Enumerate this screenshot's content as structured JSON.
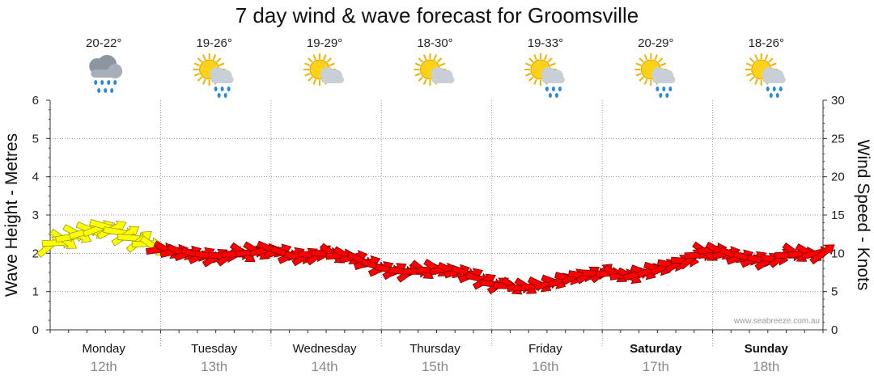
{
  "chart_data": {
    "type": "line",
    "title": "7 day wind & wave forecast for Groomsville",
    "ylabel": "Wave Height - Metres",
    "y2label": "Wind Speed - Knots",
    "ylim": [
      0,
      6
    ],
    "y2lim": [
      0,
      30
    ],
    "yticks": [
      "0",
      "1",
      "2",
      "3",
      "4",
      "5",
      "6"
    ],
    "y2ticks": [
      "0",
      "5",
      "10",
      "15",
      "20",
      "25",
      "30"
    ],
    "watermark": "www.seabreeze.com.au",
    "days": [
      {
        "day": "Monday",
        "date": "12th",
        "temp": "20-22°",
        "icon": "rain-cloud-icon",
        "bold": false
      },
      {
        "day": "Tuesday",
        "date": "13th",
        "temp": "19-26°",
        "icon": "sun-cloud-rain-icon",
        "bold": false
      },
      {
        "day": "Wednesday",
        "date": "14th",
        "temp": "19-29°",
        "icon": "sun-cloud-icon",
        "bold": false
      },
      {
        "day": "Thursday",
        "date": "15th",
        "temp": "18-30°",
        "icon": "sun-cloud-icon",
        "bold": false
      },
      {
        "day": "Friday",
        "date": "16th",
        "temp": "19-33°",
        "icon": "sun-cloud-rain-icon",
        "bold": false
      },
      {
        "day": "Saturday",
        "date": "17th",
        "temp": "20-29°",
        "icon": "sun-cloud-rain-icon",
        "bold": true
      },
      {
        "day": "Sunday",
        "date": "18th",
        "temp": "18-26°",
        "icon": "sun-cloud-rain-icon",
        "bold": true
      }
    ],
    "series": [
      {
        "name": "",
        "x_hours": [
          0,
          6,
          12,
          18,
          24,
          30,
          36,
          42,
          48,
          54,
          60,
          66,
          72,
          78,
          84,
          90,
          96,
          102,
          108,
          114,
          120,
          126,
          132,
          138,
          144,
          150,
          156,
          162,
          168
        ],
        "wave_height": [
          2.2,
          2.5,
          2.7,
          2.4,
          2.1,
          2.0,
          1.9,
          2.0,
          2.1,
          1.9,
          2.0,
          1.9,
          1.6,
          1.5,
          1.6,
          1.5,
          1.2,
          1.1,
          1.2,
          1.4,
          1.5,
          1.4,
          1.6,
          1.8,
          2.1,
          1.9,
          1.8,
          2.0,
          2.0
        ],
        "wind_speed_knots": [
          12,
          13,
          14,
          13,
          11,
          10,
          10,
          11,
          11,
          10,
          11,
          10,
          8,
          8,
          9,
          8,
          6,
          6,
          7,
          8,
          8,
          8,
          9,
          10,
          11,
          10,
          9,
          10,
          11
        ],
        "colors": [
          "#ffff00",
          "#ffff00",
          "#ffff00",
          "#ffff00",
          "#ff0000",
          "#ff0000",
          "#ff0000",
          "#ff0000",
          "#ff0000",
          "#ff0000",
          "#ff0000",
          "#ff0000",
          "#ff0000",
          "#ff0000",
          "#ff0000",
          "#ff0000",
          "#ff0000",
          "#ff0000",
          "#ff0000",
          "#ff0000",
          "#ff0000",
          "#ff0000",
          "#ff0000",
          "#ff0000",
          "#ff0000",
          "#ff0000",
          "#ff0000",
          "#ff0000",
          "#ff0000"
        ]
      }
    ]
  }
}
